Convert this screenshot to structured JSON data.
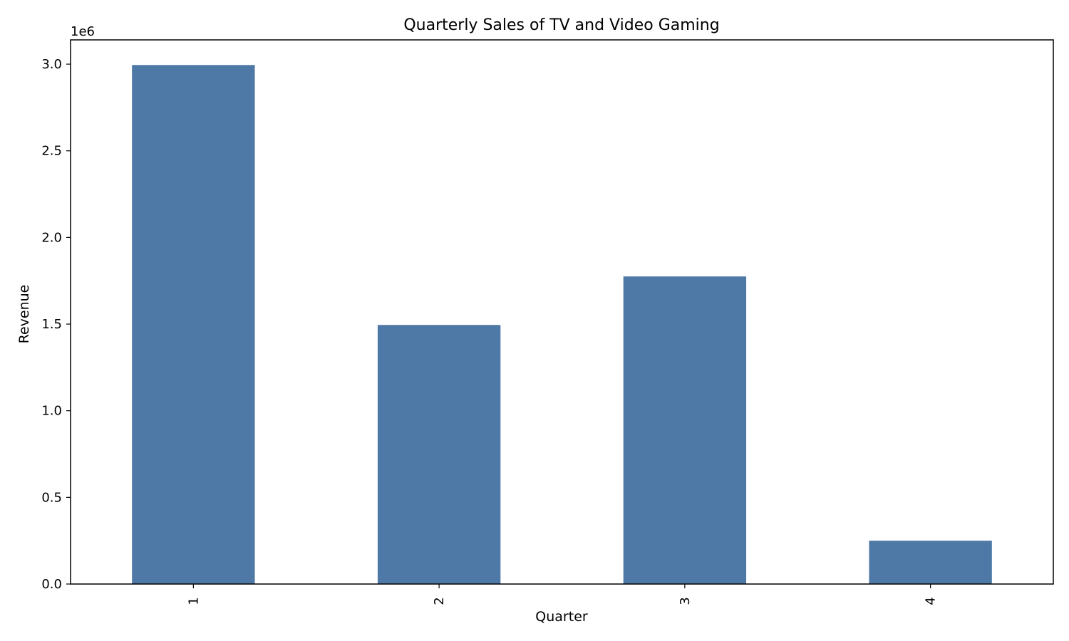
{
  "chart_data": {
    "type": "bar",
    "title": "Quarterly Sales of TV and Video Gaming",
    "xlabel": "Quarter",
    "ylabel": "Revenue",
    "categories": [
      "1",
      "2",
      "3",
      "4"
    ],
    "values": [
      2995000,
      1495000,
      1775000,
      250000
    ],
    "ylim": [
      0,
      3140000
    ],
    "yticks": [
      0,
      500000,
      1000000,
      1500000,
      2000000,
      2500000,
      3000000
    ],
    "ytick_labels": [
      "0.0",
      "0.5",
      "1.0",
      "1.5",
      "2.0",
      "2.5",
      "3.0"
    ],
    "y_offset_label": "1e6",
    "x_tick_rotation": "vertical",
    "grid": false,
    "legend": "none",
    "bar_color": "#4e79a7"
  }
}
